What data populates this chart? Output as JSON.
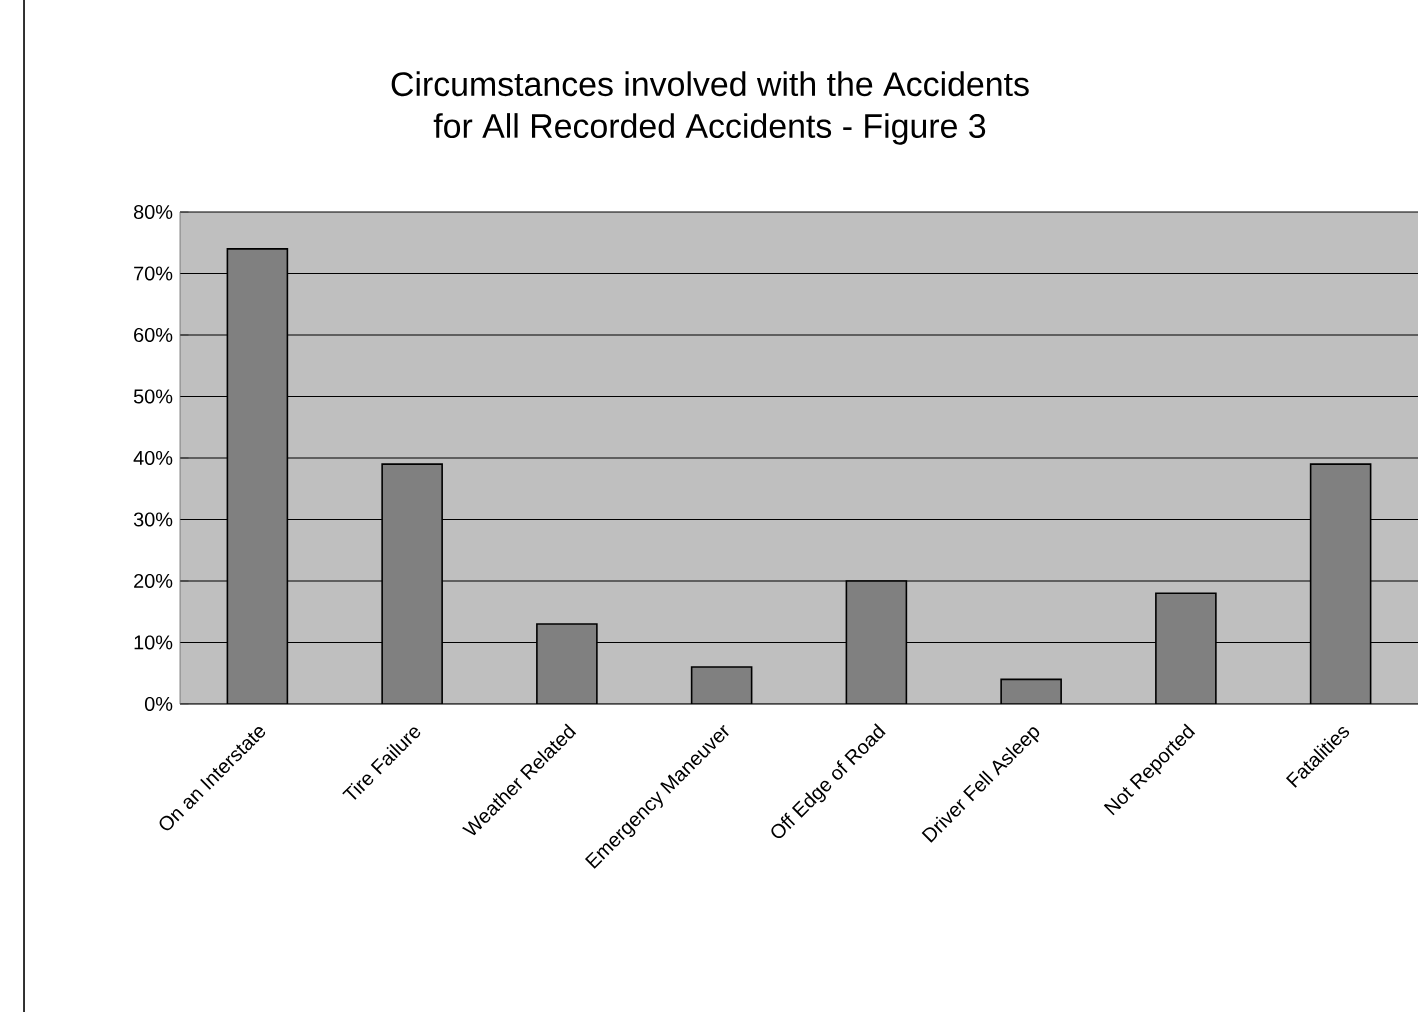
{
  "chart_data": {
    "type": "bar",
    "title": "Circumstances involved with the Accidents\nfor All Recorded Accidents - Figure 3",
    "categories": [
      "On an Interstate",
      "Tire Failure",
      "Weather Related",
      "Emergency Maneuver",
      "Off Edge of Road",
      "Driver Fell Asleep",
      "Not Reported",
      "Fatalities"
    ],
    "values": [
      74,
      39,
      13,
      6,
      20,
      4,
      18,
      39
    ],
    "color": "#808080",
    "ylim": [
      0,
      80
    ],
    "yticks": [
      {
        "value": 0,
        "label": "0%"
      },
      {
        "value": 10,
        "label": "10%"
      },
      {
        "value": 20,
        "label": "20%"
      },
      {
        "value": 30,
        "label": "30%"
      },
      {
        "value": 40,
        "label": "40%"
      },
      {
        "value": 50,
        "label": "50%"
      },
      {
        "value": 60,
        "label": "60%"
      },
      {
        "value": 70,
        "label": "70%"
      },
      {
        "value": 80,
        "label": "80%"
      }
    ],
    "grid": "y"
  }
}
